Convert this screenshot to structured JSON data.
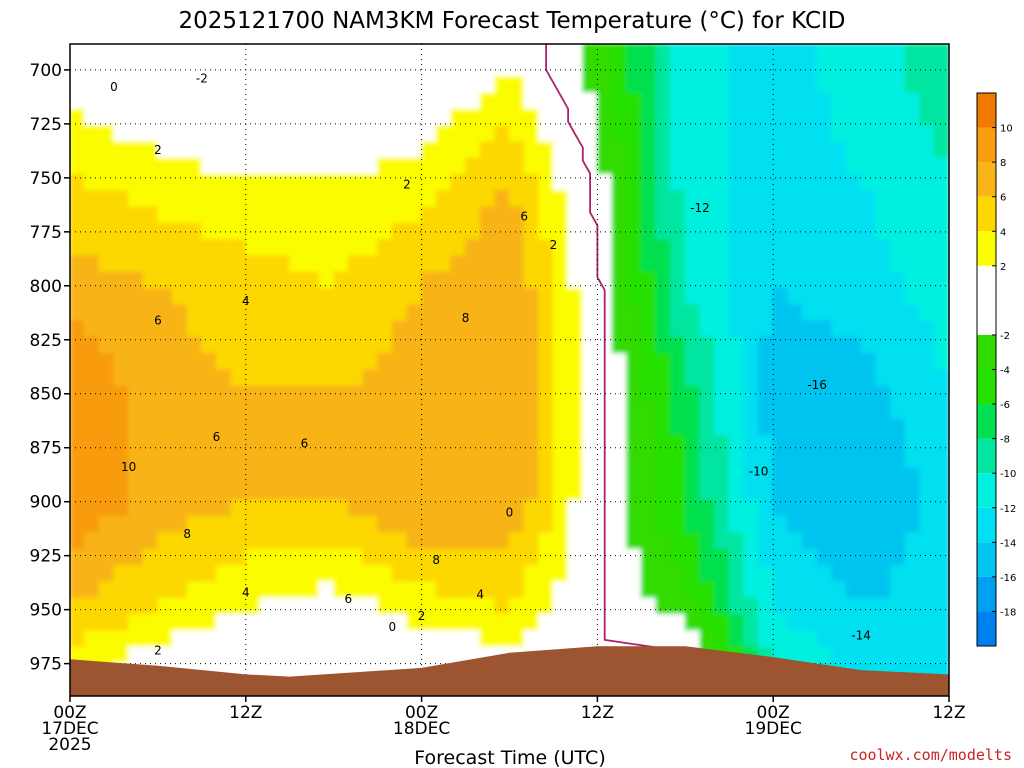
{
  "title": "2025121700 NAM3KM Forecast Temperature (°C) for KCID",
  "credit": "coolwx.com/modelts",
  "colors": {
    "ground": "#9c5530",
    "freezing_line": "#b0206a",
    "contour": "#000000",
    "grid": "#000000"
  },
  "chart_data": {
    "type": "heatmap",
    "title": "2025121700 NAM3KM Forecast Temperature (°C) for KCID",
    "xlabel": "Forecast Time (UTC)",
    "ylabel": "",
    "x_unit": "hours since 2025-12-17 00Z",
    "xlim": [
      0,
      60
    ],
    "y_unit": "hPa",
    "ylim": [
      688,
      990
    ],
    "y_inverted": true,
    "y_ticks": [
      700,
      725,
      750,
      775,
      800,
      825,
      850,
      875,
      900,
      925,
      950,
      975
    ],
    "x_ticks": [
      {
        "x": 0,
        "lines": [
          "00Z",
          "17DEC",
          "2025"
        ]
      },
      {
        "x": 12,
        "lines": [
          "12Z"
        ]
      },
      {
        "x": 24,
        "lines": [
          "00Z",
          "18DEC"
        ]
      },
      {
        "x": 36,
        "lines": [
          "12Z"
        ]
      },
      {
        "x": 48,
        "lines": [
          "00Z",
          "19DEC"
        ]
      },
      {
        "x": 60,
        "lines": [
          "12Z"
        ]
      }
    ],
    "grid": true,
    "colorbar": {
      "placement": "right",
      "ticks": [
        10,
        8,
        6,
        4,
        2,
        -2,
        -4,
        -6,
        -8,
        -10,
        -12,
        -14,
        -16,
        -18
      ],
      "bins": [
        {
          "from": 10,
          "to": 12,
          "color": "#f07a00"
        },
        {
          "from": 8,
          "to": 10,
          "color": "#f89c10"
        },
        {
          "from": 6,
          "to": 8,
          "color": "#f8b418"
        },
        {
          "from": 4,
          "to": 6,
          "color": "#fcd800"
        },
        {
          "from": 2,
          "to": 4,
          "color": "#fcfc00"
        },
        {
          "from": -2,
          "to": 2,
          "color": "#ffffff"
        },
        {
          "from": -4,
          "to": -2,
          "color": "#30dc00"
        },
        {
          "from": -6,
          "to": -4,
          "color": "#28e000"
        },
        {
          "from": -8,
          "to": -6,
          "color": "#00e050"
        },
        {
          "from": -10,
          "to": -8,
          "color": "#00e6a0"
        },
        {
          "from": -12,
          "to": -10,
          "color": "#00f0e0"
        },
        {
          "from": -14,
          "to": -12,
          "color": "#00e0f0"
        },
        {
          "from": -16,
          "to": -14,
          "color": "#00c4f0"
        },
        {
          "from": -18,
          "to": -16,
          "color": "#00a0f0"
        },
        {
          "from": -20,
          "to": -18,
          "color": "#0080f0"
        }
      ]
    },
    "temperature_profiles": [
      {
        "t": 0,
        "p": [
          700,
          750,
          800,
          850,
          900,
          950,
          975
        ],
        "temp": [
          1,
          4,
          7,
          10,
          10,
          6,
          3
        ]
      },
      {
        "t": 6,
        "p": [
          700,
          750,
          800,
          850,
          900,
          950,
          975
        ],
        "temp": [
          -1,
          3,
          6,
          7,
          7,
          4,
          1
        ]
      },
      {
        "t": 12,
        "p": [
          700,
          750,
          800,
          850,
          900,
          950,
          975
        ],
        "temp": [
          -2,
          2,
          5,
          6,
          6,
          2,
          -1
        ]
      },
      {
        "t": 18,
        "p": [
          700,
          750,
          800,
          850,
          900,
          950,
          975
        ],
        "temp": [
          -2,
          2,
          4,
          6,
          6,
          1,
          -2
        ]
      },
      {
        "t": 24,
        "p": [
          700,
          750,
          800,
          850,
          900,
          950,
          975
        ],
        "temp": [
          -1,
          3,
          6,
          7,
          8,
          3,
          0
        ]
      },
      {
        "t": 30,
        "p": [
          700,
          750,
          800,
          850,
          900,
          950,
          975
        ],
        "temp": [
          2,
          6,
          8,
          8,
          8,
          4,
          1
        ]
      },
      {
        "t": 36,
        "p": [
          700,
          750,
          800,
          850,
          900,
          950,
          975
        ],
        "temp": [
          -3,
          -1,
          0,
          0,
          0,
          0,
          0
        ]
      },
      {
        "t": 42,
        "p": [
          700,
          750,
          800,
          850,
          900,
          950,
          975
        ],
        "temp": [
          -11,
          -11,
          -10,
          -7,
          -6,
          -3,
          1
        ]
      },
      {
        "t": 48,
        "p": [
          700,
          750,
          800,
          850,
          900,
          950,
          975
        ],
        "temp": [
          -13,
          -13,
          -14,
          -15,
          -14,
          -12,
          -10
        ]
      },
      {
        "t": 54,
        "p": [
          700,
          750,
          800,
          850,
          900,
          950,
          975
        ],
        "temp": [
          -11,
          -12,
          -13,
          -15,
          -16,
          -14,
          -13
        ]
      },
      {
        "t": 60,
        "p": [
          700,
          750,
          800,
          850,
          900,
          950,
          975
        ],
        "temp": [
          -9,
          -10,
          -11,
          -12,
          -13,
          -13,
          -12
        ]
      }
    ],
    "contour_labels": [
      {
        "text": "0",
        "x": 3,
        "p": 708
      },
      {
        "text": "-2",
        "x": 9,
        "p": 704
      },
      {
        "text": "2",
        "x": 6,
        "p": 737
      },
      {
        "text": "2",
        "x": 23,
        "p": 753
      },
      {
        "text": "6",
        "x": 31,
        "p": 768
      },
      {
        "text": "2",
        "x": 33,
        "p": 781
      },
      {
        "text": "-12",
        "x": 43,
        "p": 764
      },
      {
        "text": "6",
        "x": 6,
        "p": 816
      },
      {
        "text": "4",
        "x": 12,
        "p": 807
      },
      {
        "text": "8",
        "x": 27,
        "p": 815
      },
      {
        "text": "6",
        "x": 10,
        "p": 870
      },
      {
        "text": "6",
        "x": 16,
        "p": 873
      },
      {
        "text": "-16",
        "x": 51,
        "p": 846
      },
      {
        "text": "10",
        "x": 4,
        "p": 884
      },
      {
        "text": "-10",
        "x": 47,
        "p": 886
      },
      {
        "text": "8",
        "x": 8,
        "p": 915
      },
      {
        "text": "0",
        "x": 30,
        "p": 905
      },
      {
        "text": "8",
        "x": 25,
        "p": 927
      },
      {
        "text": "4",
        "x": 12,
        "p": 942
      },
      {
        "text": "6",
        "x": 19,
        "p": 945
      },
      {
        "text": "4",
        "x": 28,
        "p": 943
      },
      {
        "text": "2",
        "x": 24,
        "p": 953
      },
      {
        "text": "0",
        "x": 22,
        "p": 958
      },
      {
        "text": "-14",
        "x": 54,
        "p": 962
      },
      {
        "text": "2",
        "x": 6,
        "p": 969
      }
    ],
    "surface_pressure": [
      {
        "t": 0,
        "p": 973
      },
      {
        "t": 6,
        "p": 976
      },
      {
        "t": 12,
        "p": 980
      },
      {
        "t": 15,
        "p": 981
      },
      {
        "t": 24,
        "p": 977
      },
      {
        "t": 30,
        "p": 970
      },
      {
        "t": 36,
        "p": 967
      },
      {
        "t": 42,
        "p": 967
      },
      {
        "t": 48,
        "p": 972
      },
      {
        "t": 54,
        "p": 978
      },
      {
        "t": 60,
        "p": 980
      }
    ]
  }
}
